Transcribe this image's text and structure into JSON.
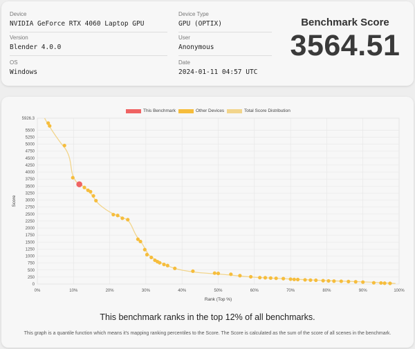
{
  "info": {
    "device_label": "Device",
    "device_value": "NVIDIA GeForce RTX 4060 Laptop GPU",
    "version_label": "Version",
    "version_value": "Blender 4.0.0",
    "os_label": "OS",
    "os_value": "Windows",
    "device_type_label": "Device Type",
    "device_type_value": "GPU (OPTIX)",
    "user_label": "User",
    "user_value": "Anonymous",
    "date_label": "Date",
    "date_value": "2024-01-11 04:57 UTC"
  },
  "score": {
    "title": "Benchmark Score",
    "value": "3564.51"
  },
  "legend": {
    "this": "This Benchmark",
    "other": "Other Devices",
    "total": "Total Score Distribution"
  },
  "colors": {
    "this": "#ef6363",
    "other": "#f6bd3c",
    "total": "#f2d58c"
  },
  "chart_data": {
    "type": "line",
    "xlabel": "Rank (Top %)",
    "ylabel": "Score",
    "xlim": [
      0,
      100
    ],
    "ylim": [
      0,
      5926.3
    ],
    "x_ticks": [
      "0%",
      "10%",
      "20%",
      "30%",
      "40%",
      "50%",
      "60%",
      "70%",
      "80%",
      "90%",
      "100%"
    ],
    "y_ticks": [
      "0",
      "250",
      "500",
      "750",
      "1000",
      "1250",
      "1500",
      "1750",
      "2000",
      "2250",
      "2500",
      "2750",
      "3000",
      "3250",
      "3500",
      "3750",
      "4000",
      "4250",
      "4500",
      "4750",
      "5000",
      "5250",
      "5500",
      "5926.3"
    ],
    "grid": true,
    "legend_position": "top",
    "series": [
      {
        "name": "Total Score Distribution",
        "x": [
          2,
          3,
          5,
          7,
          8,
          9,
          9.5,
          10,
          11,
          12,
          13,
          14,
          15,
          16,
          17,
          19,
          21,
          23,
          25,
          26,
          27,
          28,
          29,
          30,
          31,
          33,
          35,
          37,
          39,
          42,
          45,
          50,
          55,
          60,
          65,
          70,
          75,
          80,
          85,
          90,
          95,
          99
        ],
        "y": [
          5926.3,
          5700,
          5300,
          4950,
          4800,
          4500,
          4000,
          3800,
          3600,
          3564.51,
          3450,
          3350,
          3200,
          3000,
          2850,
          2650,
          2500,
          2400,
          2300,
          2100,
          1800,
          1600,
          1450,
          1200,
          1000,
          850,
          700,
          600,
          520,
          450,
          400,
          360,
          300,
          240,
          210,
          180,
          150,
          120,
          100,
          80,
          50,
          20
        ]
      },
      {
        "name": "Other Devices",
        "x": [
          3,
          3.4,
          7.5,
          9.8,
          13,
          14,
          14.7,
          15.5,
          16.2,
          21,
          22.2,
          23.5,
          25,
          27.8,
          28.5,
          29.7,
          30.3,
          31.5,
          32.5,
          33.2,
          33.8,
          35,
          36,
          38,
          43,
          49,
          50,
          53.5,
          56,
          59,
          61.5,
          63,
          64.5,
          66,
          68,
          70,
          71,
          72,
          74,
          75.5,
          77,
          79,
          80.5,
          82,
          84,
          86,
          88,
          90,
          93,
          95,
          96,
          97.5
        ],
        "y": [
          5750,
          5650,
          4950,
          3800,
          3450,
          3350,
          3300,
          3150,
          2980,
          2480,
          2450,
          2350,
          2300,
          1600,
          1520,
          1230,
          1050,
          950,
          850,
          800,
          760,
          700,
          660,
          560,
          460,
          390,
          380,
          350,
          300,
          260,
          230,
          225,
          215,
          205,
          195,
          175,
          165,
          160,
          150,
          140,
          135,
          120,
          112,
          105,
          100,
          90,
          80,
          70,
          45,
          38,
          30,
          25
        ]
      },
      {
        "name": "This Benchmark",
        "x": [
          11.6
        ],
        "y": [
          3564.51
        ]
      }
    ]
  },
  "rank_text": "This benchmark ranks in the top 12% of all benchmarks.",
  "footnote": "This graph is a quantile function which means it's mapping ranking percentiles to the Score. The Score is calculated as the sum of the score of all scenes in the benchmark."
}
